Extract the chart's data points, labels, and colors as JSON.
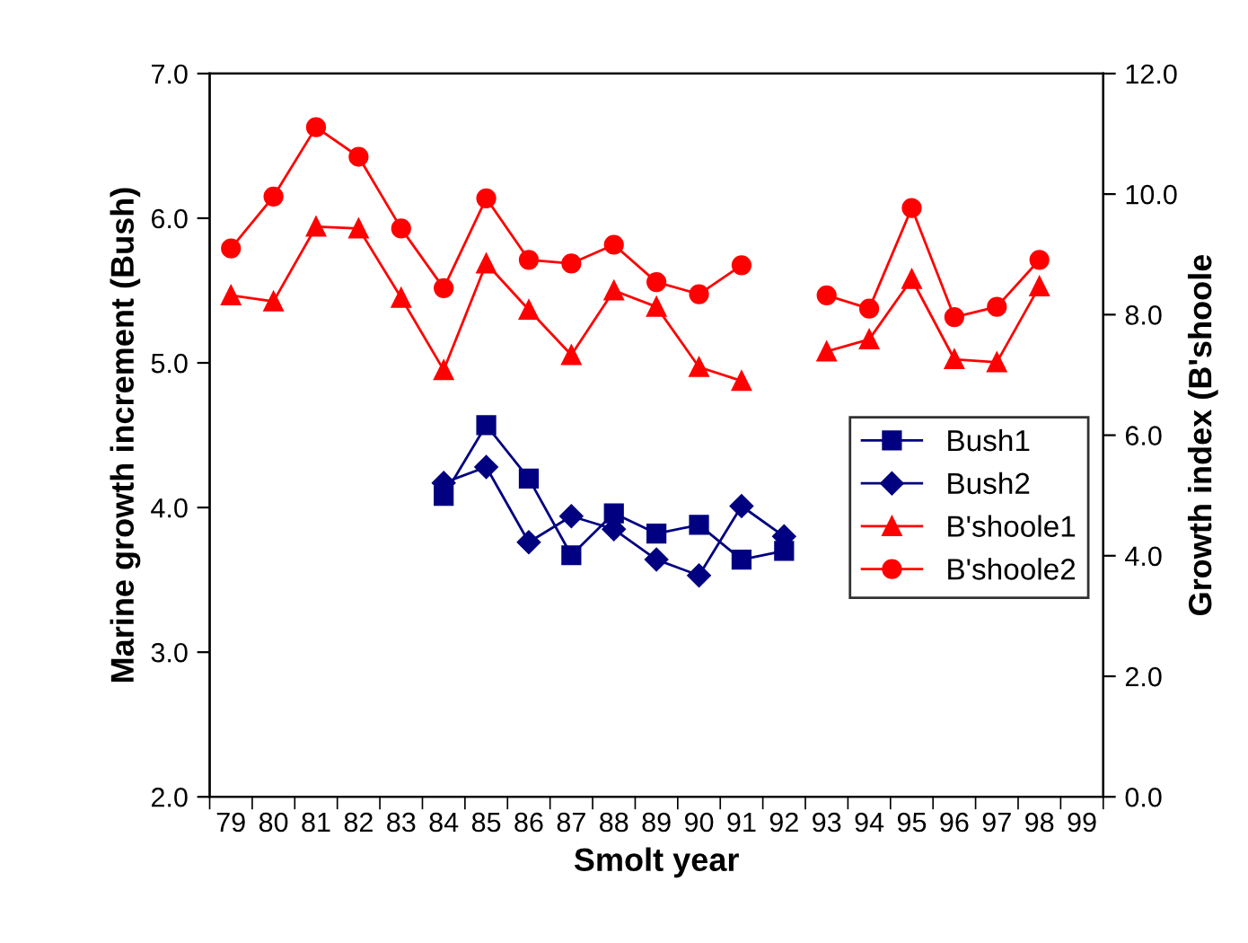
{
  "chart_data": {
    "type": "line",
    "xlabel": "Smolt year",
    "ylabel": "Marine growth increment (Bush)",
    "y2label": "Growth index (B'shoole",
    "categories": [
      "79",
      "80",
      "81",
      "82",
      "83",
      "84",
      "85",
      "86",
      "87",
      "88",
      "89",
      "90",
      "91",
      "92",
      "93",
      "94",
      "95",
      "96",
      "97",
      "98",
      "99"
    ],
    "ylim": [
      2.0,
      7.0
    ],
    "yticks": [
      {
        "value": 2,
        "label": "2.0"
      },
      {
        "value": 3,
        "label": "3.0"
      },
      {
        "value": 4,
        "label": "4.0"
      },
      {
        "value": 5,
        "label": "5.0"
      },
      {
        "value": 6,
        "label": "6.0"
      },
      {
        "value": 7,
        "label": "7.0"
      }
    ],
    "y2lim": [
      0,
      12
    ],
    "y2ticks": [
      {
        "value": 0,
        "label": "0.0"
      },
      {
        "value": 2,
        "label": "2.0"
      },
      {
        "value": 4,
        "label": "4.0"
      },
      {
        "value": 6,
        "label": "6.0"
      },
      {
        "value": 8,
        "label": "8.0"
      },
      {
        "value": 10,
        "label": "10.0"
      },
      {
        "value": 12,
        "label": "12.0"
      }
    ],
    "grid": false,
    "legend": "right",
    "series": [
      {
        "name": "Bush1",
        "color": "#000080",
        "marker": "square",
        "values": [
          null,
          null,
          null,
          null,
          null,
          4.08,
          4.57,
          4.2,
          3.67,
          3.96,
          3.82,
          3.88,
          3.64,
          3.7,
          null,
          null,
          null,
          null,
          null,
          null,
          null
        ]
      },
      {
        "name": "Bush2",
        "color": "#000080",
        "marker": "diamond",
        "values": [
          null,
          null,
          null,
          null,
          null,
          4.17,
          4.28,
          3.76,
          3.94,
          3.85,
          3.64,
          3.53,
          4.01,
          3.8,
          null,
          null,
          null,
          null,
          null,
          null,
          null
        ]
      },
      {
        "name": "B'shoole1",
        "color": "#ff0000",
        "marker": "triangle",
        "axis": "y2",
        "values": [
          8.32,
          8.22,
          9.46,
          9.43,
          8.28,
          7.08,
          8.85,
          8.08,
          7.33,
          8.4,
          8.13,
          7.13,
          6.9,
          null,
          7.39,
          7.59,
          8.59,
          7.26,
          7.21,
          8.47,
          null
        ]
      },
      {
        "name": "B'shoole2",
        "color": "#ff0000",
        "marker": "circle",
        "axis": "y2",
        "values": [
          9.1,
          9.96,
          11.11,
          10.62,
          9.43,
          8.44,
          9.93,
          8.91,
          8.85,
          9.16,
          8.54,
          8.34,
          8.82,
          null,
          8.32,
          8.1,
          9.77,
          7.96,
          8.13,
          8.91,
          null
        ]
      }
    ]
  }
}
